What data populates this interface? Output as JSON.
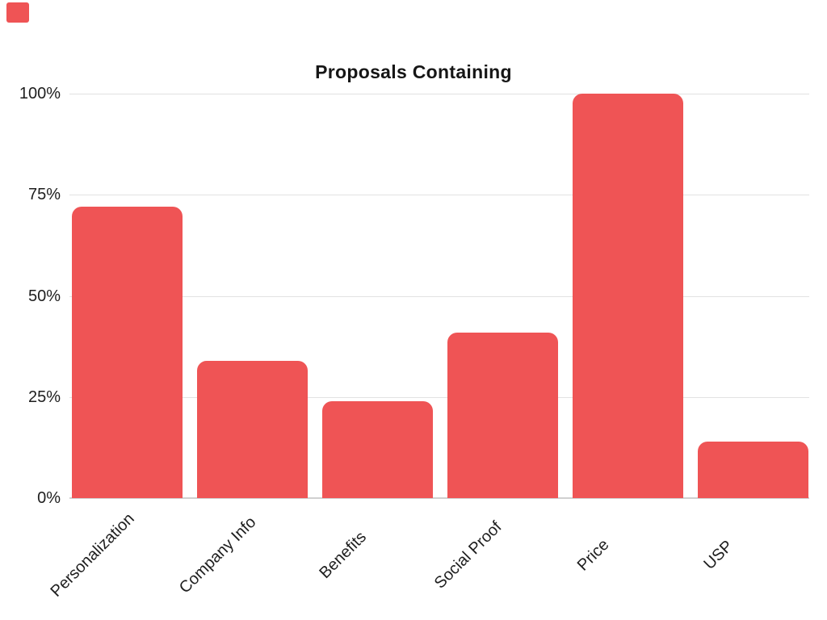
{
  "page": {
    "background": "#FFFFFF"
  },
  "decorations": {
    "corner_mark_color": "#EF5455"
  },
  "chart_data": {
    "type": "bar",
    "title": "Proposals Containing",
    "categories": [
      "Personalization",
      "Company Info",
      "Benefits",
      "Social Proof",
      "Price",
      "USP"
    ],
    "values": [
      72,
      34,
      24,
      41,
      100,
      14
    ],
    "value_unit": "percent",
    "series_count": 1,
    "xlabel": "",
    "ylabel": "",
    "y_ticks": [
      0,
      25,
      50,
      75,
      100
    ],
    "y_tick_labels": [
      "0%",
      "25%",
      "50%",
      "75%",
      "100%"
    ],
    "ylim": [
      0,
      100
    ],
    "grid": "horizontal",
    "legend": "none",
    "x_label_rotation_deg": -45,
    "bar_color": "#EF5455",
    "gridline_color": "#E2E2E2",
    "axis_line_color": "#D0D0D0",
    "text_color": "#1E1E1E"
  }
}
